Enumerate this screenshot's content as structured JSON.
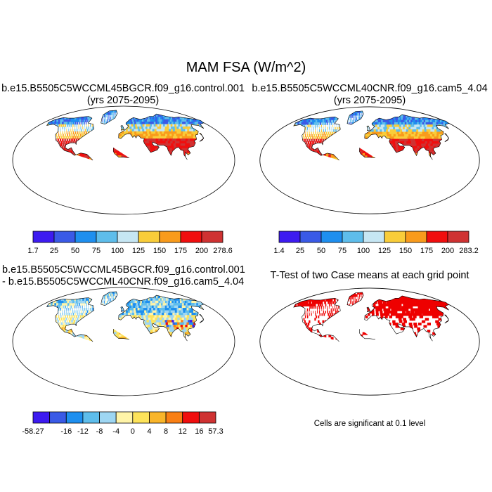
{
  "figure": {
    "title": "MAM FSA (W/m^2)"
  },
  "panels": [
    {
      "id": "case1",
      "title_lines": [
        "b.e15.B5505C5WCCML45BGCR.f09_g16.control.001",
        "(yrs 2075-2095)"
      ],
      "scheme": "abs"
    },
    {
      "id": "case2",
      "title_lines": [
        "b.e15.B5505C5WCCML40CNR.f09_g16.cam5_4.04",
        "(yrs 2075-2095)"
      ],
      "scheme": "abs"
    },
    {
      "id": "diff",
      "title_lines": [
        "b.e15.B5505C5WCCML45BGCR.f09_g16.control.001",
        "- b.e15.B5505C5WCCML40CNR.f09_g16.cam5_4.04"
      ],
      "scheme": "diff"
    },
    {
      "id": "ttest",
      "title_lines": [
        "T-Test of two Case means at each grid point"
      ],
      "scheme": "sig"
    }
  ],
  "colorbars": [
    {
      "id": "cbar1",
      "colors": [
        "#3d1bf0",
        "#3a5ae6",
        "#1e8fef",
        "#5ebdeb",
        "#c6e6f3",
        "#f9cd3a",
        "#f99b1c",
        "#f00e0e",
        "#cf3232"
      ],
      "labels": [
        "1.7",
        "25",
        "50",
        "75",
        "100",
        "125",
        "150",
        "175",
        "200",
        "278.6"
      ]
    },
    {
      "id": "cbar2",
      "colors": [
        "#3d1bf0",
        "#3a5ae6",
        "#1e8fef",
        "#5ebdeb",
        "#c6e6f3",
        "#f9cd3a",
        "#f99b1c",
        "#f00e0e",
        "#cf3232"
      ],
      "labels": [
        "1.4",
        "25",
        "50",
        "75",
        "100",
        "125",
        "150",
        "175",
        "200",
        "283.2"
      ]
    },
    {
      "id": "cbar3",
      "colors": [
        "#3d1bf0",
        "#3a5ae6",
        "#1e8fef",
        "#5ebdeb",
        "#9ed6f2",
        "#fff4a8",
        "#fde35a",
        "#f9b52a",
        "#f97f14",
        "#f00e0e",
        "#cf3232"
      ],
      "labels": [
        "-58.27",
        "",
        "-16",
        "-12",
        "-8",
        "-4",
        "0",
        "4",
        "8",
        "12",
        "16",
        "57.3"
      ]
    }
  ],
  "significance_note": "Cells are significant at 0.1 level",
  "colors": {
    "significant": "#ee0000",
    "antarctica_case": "#3d1bf0",
    "antarctica_diff": "#fff4a8",
    "coastline": "#000000"
  }
}
